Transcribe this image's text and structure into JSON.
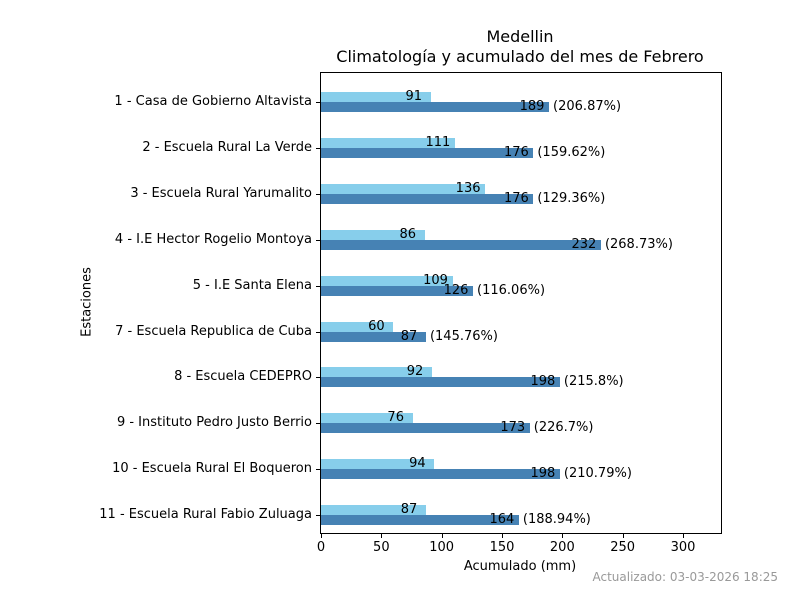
{
  "figure": {
    "title": "Medellin",
    "subtitle": "Climatología y acumulado del mes de Febrero",
    "xlabel": "Acumulado (mm)",
    "ylabel": "Estaciones",
    "footer": "Actualizado: 03-03-2026 18:25"
  },
  "chart_data": {
    "type": "bar",
    "orientation": "horizontal",
    "title": "Medellin",
    "subtitle": "Climatología y acumulado del mes de Febrero",
    "xlabel": "Acumulado (mm)",
    "ylabel": "Estaciones",
    "xlim": [
      0,
      332
    ],
    "xticks": [
      0,
      50,
      100,
      150,
      200,
      250,
      300
    ],
    "grid": false,
    "legend": "none",
    "categories": [
      "1 - Casa de Gobierno Altavista",
      "2 - Escuela Rural La Verde",
      "3 - Escuela Rural Yarumalito",
      "4 - I.E Hector Rogelio Montoya",
      "5 - I.E Santa Elena",
      "7 - Escuela Republica de Cuba",
      "8 - Escuela CEDEPRO",
      "9 - Instituto Pedro Justo Berrio",
      "10 - Escuela Rural El Boqueron",
      "11 - Escuela Rural Fabio Zuluaga"
    ],
    "series": [
      {
        "name": "Climatología",
        "color": "#87CEEB",
        "values": [
          91,
          111,
          136,
          86,
          109,
          60,
          92,
          76,
          94,
          87
        ]
      },
      {
        "name": "Acumulado",
        "color": "#4682B4",
        "values": [
          189,
          176,
          176,
          232,
          126,
          87,
          198,
          173,
          198,
          164
        ]
      }
    ],
    "percent_labels": [
      "(206.87%)",
      "(159.62%)",
      "(129.36%)",
      "(268.73%)",
      "(116.06%)",
      "(145.76%)",
      "(215.8%)",
      "(226.7%)",
      "(210.79%)",
      "(188.94%)"
    ]
  }
}
